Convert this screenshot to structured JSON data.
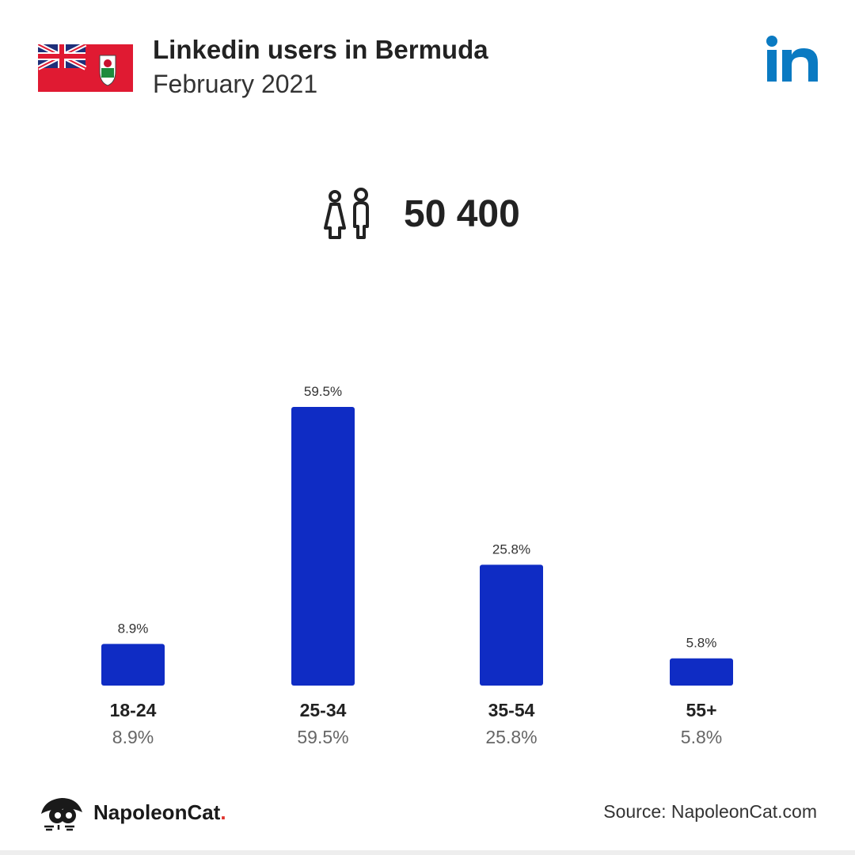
{
  "header": {
    "title": "Linkedin users in Bermuda",
    "subtitle": "February 2021"
  },
  "total": {
    "value": "50 400",
    "icon": "people-icon"
  },
  "chart_data": {
    "type": "bar",
    "categories": [
      "18-24",
      "25-34",
      "35-54",
      "55+"
    ],
    "values": [
      8.9,
      59.5,
      25.8,
      5.8
    ],
    "value_labels": [
      "8.9%",
      "59.5%",
      "25.8%",
      "5.8%"
    ],
    "unit": "%",
    "bar_color": "#0f2cc4",
    "grid": false,
    "legend": "none"
  },
  "colors": {
    "linkedin": "#0a7ac2",
    "bar": "#0f2cc4",
    "flag_red": "#e01a32",
    "brand_dot": "#e0312b"
  },
  "footer": {
    "brand_name": "NapoleonCat",
    "brand_dot": ".",
    "source": "Source: NapoleonCat.com"
  }
}
